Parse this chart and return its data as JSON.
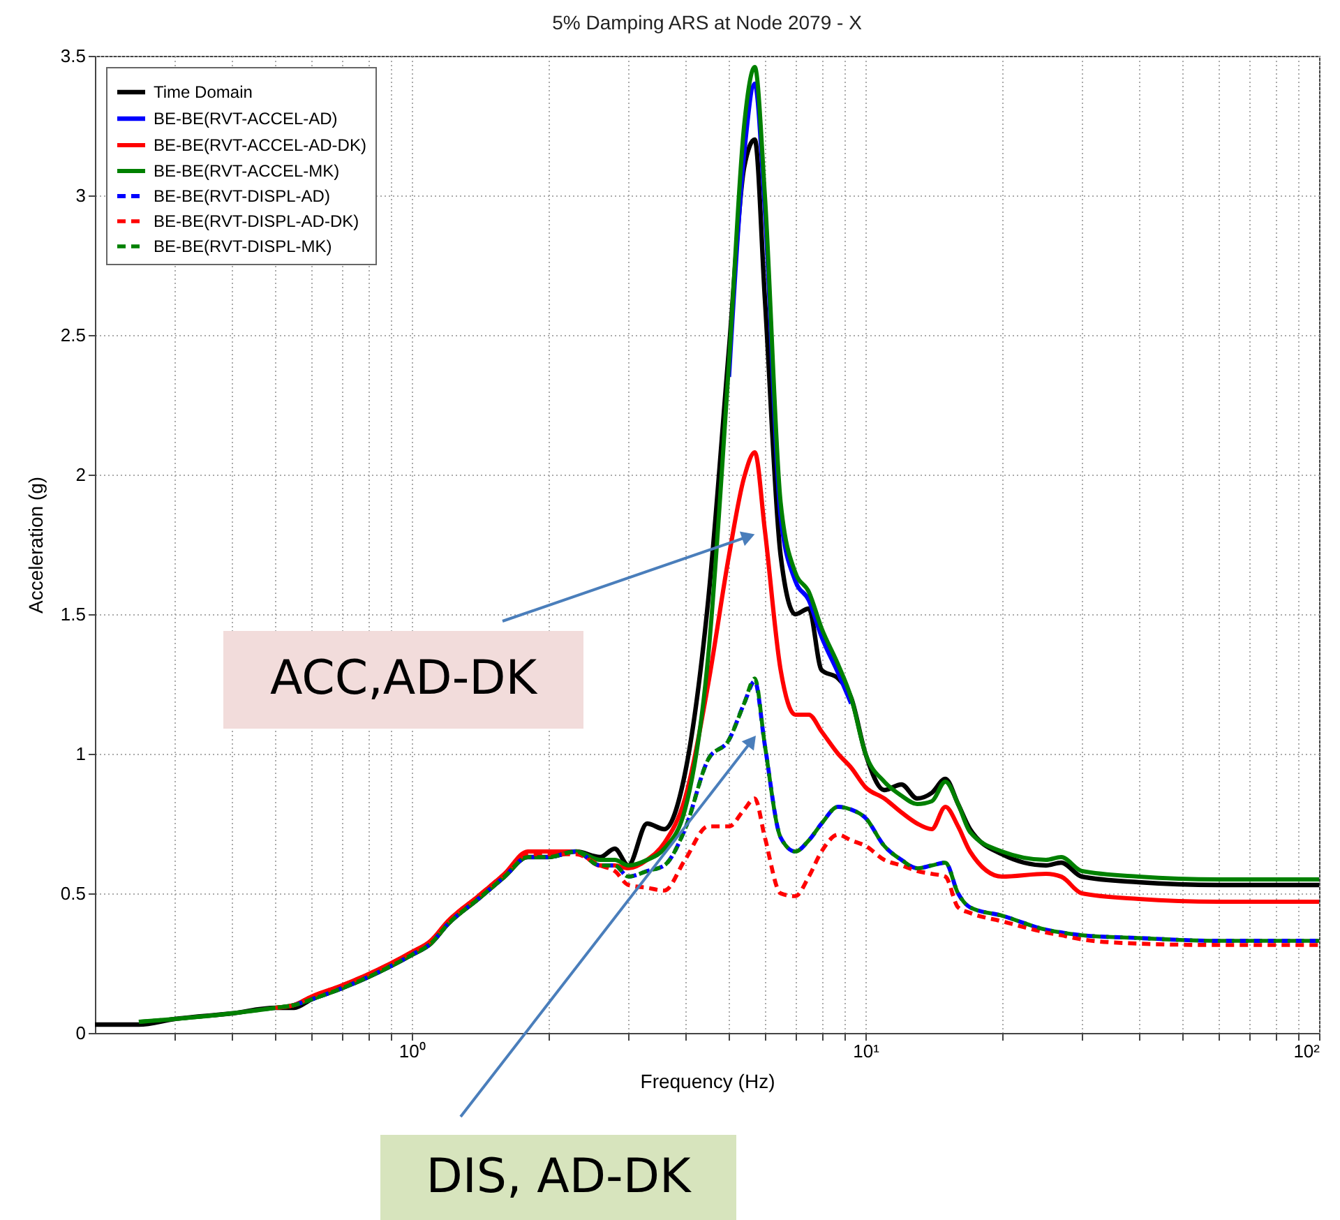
{
  "chart_data": {
    "type": "line",
    "title": "5% Damping ARS at Node 2079 - X",
    "xlabel": "Frequency (Hz)",
    "ylabel": "Acceleration (g)",
    "log": "x",
    "grid": true,
    "legend": "top left",
    "xlim": [
      0.2,
      100
    ],
    "ylim": [
      0,
      3.5
    ],
    "xticks": [
      {
        "value": 0.3,
        "label": null
      },
      {
        "value": 0.4,
        "label": null
      },
      {
        "value": 0.5,
        "label": null
      },
      {
        "value": 0.6,
        "label": null
      },
      {
        "value": 0.7,
        "label": null
      },
      {
        "value": 0.8,
        "label": null
      },
      {
        "value": 0.9,
        "label": null
      },
      {
        "value": 1,
        "label": "10⁰"
      },
      {
        "value": 2,
        "label": null
      },
      {
        "value": 3,
        "label": null
      },
      {
        "value": 4,
        "label": null
      },
      {
        "value": 5,
        "label": null
      },
      {
        "value": 6,
        "label": null
      },
      {
        "value": 7,
        "label": null
      },
      {
        "value": 8,
        "label": null
      },
      {
        "value": 9,
        "label": null
      },
      {
        "value": 10,
        "label": "10¹"
      },
      {
        "value": 20,
        "label": null
      },
      {
        "value": 30,
        "label": null
      },
      {
        "value": 40,
        "label": null
      },
      {
        "value": 50,
        "label": null
      },
      {
        "value": 60,
        "label": null
      },
      {
        "value": 70,
        "label": null
      },
      {
        "value": 80,
        "label": null
      },
      {
        "value": 90,
        "label": null
      },
      {
        "value": 100,
        "label": "10²"
      }
    ],
    "yticks": [
      0,
      0.5,
      1,
      1.5,
      2,
      2.5,
      3,
      3.5
    ],
    "x": [
      0.2,
      0.25,
      0.3,
      0.4,
      0.5,
      0.55,
      0.6,
      0.7,
      0.8,
      0.9,
      1,
      1.1,
      1.2,
      1.4,
      1.6,
      1.8,
      2,
      2.3,
      2.6,
      2.8,
      3,
      3.3,
      3.6,
      4,
      4.5,
      5,
      5.4,
      5.7,
      6,
      6.5,
      7,
      7.5,
      8,
      8.7,
      9.3,
      10,
      11,
      12,
      13,
      14,
      15,
      16,
      17,
      20,
      25,
      27,
      30,
      40,
      60,
      100
    ],
    "series": [
      {
        "name": "Time Domain",
        "color": "#000000",
        "line_style": "solid",
        "values": [
          0.03,
          0.03,
          0.05,
          0.07,
          0.09,
          0.09,
          0.12,
          0.16,
          0.2,
          0.24,
          0.28,
          0.32,
          0.39,
          0.48,
          0.56,
          0.63,
          0.63,
          0.65,
          0.63,
          0.66,
          0.6,
          0.75,
          0.73,
          0.93,
          1.55,
          2.45,
          3.1,
          3.2,
          2.63,
          1.71,
          1.5,
          1.52,
          1.3,
          1.27,
          1.2,
          1.0,
          0.87,
          0.89,
          0.84,
          0.86,
          0.91,
          0.82,
          0.73,
          0.64,
          0.6,
          0.61,
          0.56,
          0.54,
          0.53,
          0.53
        ]
      },
      {
        "name": "BE-BE(RVT-ACCEL-AD)",
        "color": "#0000ff",
        "line_style": "solid",
        "values": [
          null,
          null,
          null,
          null,
          null,
          null,
          null,
          null,
          null,
          null,
          null,
          null,
          null,
          null,
          null,
          null,
          null,
          null,
          null,
          null,
          null,
          null,
          null,
          null,
          null,
          2.35,
          3.15,
          3.4,
          2.95,
          1.85,
          1.62,
          1.55,
          1.42,
          1.29,
          1.18,
          null,
          null,
          null,
          null,
          null,
          null,
          null,
          null,
          null,
          null,
          null,
          null,
          null,
          null,
          null
        ]
      },
      {
        "name": "BE-BE(RVT-ACCEL-AD-DK)",
        "color": "#ff0000",
        "line_style": "solid",
        "values": [
          null,
          null,
          null,
          null,
          0.09,
          0.1,
          0.13,
          0.17,
          0.21,
          0.25,
          0.29,
          0.33,
          0.4,
          0.49,
          0.57,
          0.65,
          0.65,
          0.65,
          0.6,
          0.6,
          0.59,
          0.62,
          0.68,
          0.84,
          1.25,
          1.71,
          1.99,
          2.08,
          1.8,
          1.3,
          1.14,
          1.14,
          1.08,
          1.0,
          0.95,
          0.88,
          0.84,
          0.79,
          0.75,
          0.73,
          0.81,
          0.74,
          0.65,
          0.56,
          0.57,
          0.56,
          0.5,
          0.48,
          0.47,
          0.47
        ]
      },
      {
        "name": "BE-BE(RVT-ACCEL-MK)",
        "color": "#008000",
        "line_style": "solid",
        "values": [
          null,
          0.04,
          0.05,
          0.07,
          0.09,
          0.1,
          0.12,
          0.16,
          0.2,
          0.24,
          0.28,
          0.32,
          0.39,
          0.48,
          0.56,
          0.63,
          0.63,
          0.65,
          0.62,
          0.62,
          0.6,
          0.62,
          0.66,
          0.8,
          1.35,
          2.4,
          3.25,
          3.46,
          3.0,
          1.9,
          1.65,
          1.58,
          1.45,
          1.32,
          1.2,
          1.0,
          0.9,
          0.85,
          0.82,
          0.83,
          0.9,
          0.82,
          0.72,
          0.65,
          0.62,
          0.63,
          0.58,
          0.56,
          0.55,
          0.55
        ]
      },
      {
        "name": "BE-BE(RVT-DISPL-AD)",
        "color": "#0000ff",
        "line_style": "dashed",
        "values": [
          null,
          null,
          null,
          null,
          null,
          0.1,
          0.12,
          0.16,
          0.2,
          0.24,
          0.28,
          0.32,
          0.39,
          0.48,
          0.56,
          0.63,
          0.63,
          0.65,
          0.6,
          0.6,
          0.56,
          0.58,
          0.6,
          0.73,
          0.98,
          1.05,
          1.18,
          1.26,
          1.03,
          0.7,
          0.65,
          0.69,
          0.75,
          0.81,
          0.8,
          0.77,
          0.67,
          0.62,
          0.59,
          0.6,
          0.61,
          0.5,
          0.45,
          0.42,
          0.37,
          0.36,
          0.35,
          0.34,
          0.33,
          0.33
        ]
      },
      {
        "name": "BE-BE(RVT-DISPL-AD-DK)",
        "color": "#ff0000",
        "line_style": "dashed",
        "values": [
          null,
          null,
          null,
          null,
          0.09,
          0.1,
          0.13,
          0.17,
          0.21,
          0.25,
          0.29,
          0.33,
          0.4,
          0.49,
          0.57,
          0.64,
          0.64,
          0.64,
          0.6,
          0.58,
          0.53,
          0.52,
          0.51,
          0.62,
          0.74,
          0.74,
          0.8,
          0.84,
          0.7,
          0.5,
          0.49,
          0.56,
          0.65,
          0.71,
          0.69,
          0.67,
          0.62,
          0.6,
          0.58,
          0.57,
          0.56,
          0.45,
          0.43,
          0.4,
          0.36,
          0.35,
          0.335,
          0.32,
          0.315,
          0.315
        ]
      },
      {
        "name": "BE-BE(RVT-DISPL-MK)",
        "color": "#008000",
        "line_style": "dashed",
        "values": [
          null,
          0.04,
          0.05,
          0.07,
          0.09,
          0.1,
          0.12,
          0.16,
          0.2,
          0.24,
          0.28,
          0.32,
          0.39,
          0.48,
          0.56,
          0.63,
          0.63,
          0.65,
          0.6,
          0.6,
          0.56,
          0.58,
          0.6,
          0.73,
          0.98,
          1.05,
          1.18,
          1.27,
          1.03,
          0.7,
          0.65,
          0.69,
          0.75,
          0.81,
          0.8,
          0.77,
          0.67,
          0.62,
          0.59,
          0.6,
          0.61,
          0.5,
          0.45,
          0.42,
          0.37,
          0.36,
          0.35,
          0.34,
          0.33,
          0.33
        ]
      }
    ],
    "annotations": [
      "ACC,AD-DK",
      "DIS, AD-DK"
    ]
  }
}
